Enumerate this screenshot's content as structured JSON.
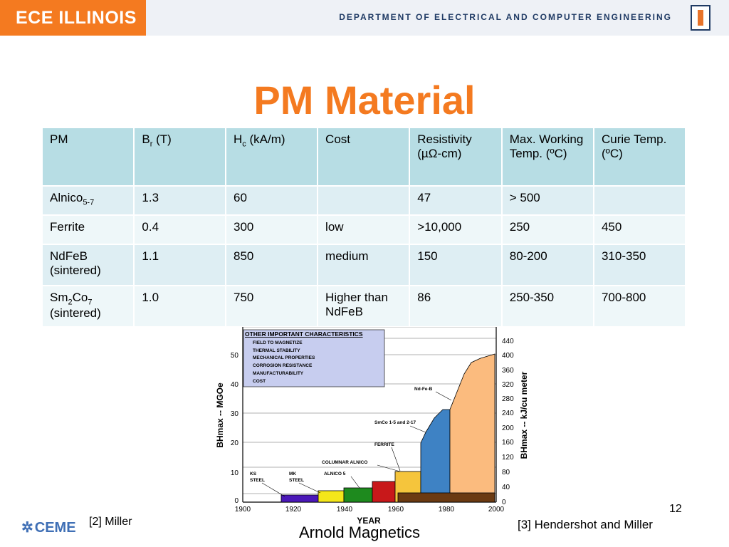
{
  "header": {
    "brand": "ECE ILLINOIS",
    "department": "DEPARTMENT OF ELECTRICAL AND COMPUTER ENGINEERING",
    "logo_letter": "I"
  },
  "title": "PM Material",
  "table": {
    "headers": [
      {
        "main": "PM",
        "sub": "",
        "tail": ""
      },
      {
        "main": "B",
        "sub": "r",
        "tail": " (T)"
      },
      {
        "main": "H",
        "sub": "c",
        "tail": " (kA/m)"
      },
      {
        "main": "Cost",
        "sub": "",
        "tail": ""
      },
      {
        "main": "Resistivity (µΩ-cm)",
        "sub": "",
        "tail": ""
      },
      {
        "main": "Max. Working Temp. (ºC)",
        "sub": "",
        "tail": ""
      },
      {
        "main": "Curie Temp. (ºC)",
        "sub": "",
        "tail": ""
      }
    ],
    "rows": [
      {
        "pm_main": "Alnico",
        "pm_sub": "5-7",
        "pm_mid": "",
        "pm_sub2": "",
        "pm_line2": "",
        "br": "1.3",
        "hc": "60",
        "cost": "",
        "resistivity": "47",
        "max_temp": "> 500",
        "curie": ""
      },
      {
        "pm_main": "Ferrite",
        "pm_sub": "",
        "pm_mid": "",
        "pm_sub2": "",
        "pm_line2": "",
        "br": "0.4",
        "hc": "300",
        "cost": "low",
        "resistivity": ">10,000",
        "max_temp": "250",
        "curie": "450"
      },
      {
        "pm_main": "NdFeB",
        "pm_sub": "",
        "pm_mid": "",
        "pm_sub2": "",
        "pm_line2": "(sintered)",
        "br": "1.1",
        "hc": "850",
        "cost": "medium",
        "resistivity": "150",
        "max_temp": "80-200",
        "curie": "310-350"
      },
      {
        "pm_main": "Sm",
        "pm_sub": "2",
        "pm_mid": "Co",
        "pm_sub2": "7",
        "pm_line2": "(sintered)",
        "br": "1.0",
        "hc": "750",
        "cost": "Higher than NdFeB",
        "resistivity": "86",
        "max_temp": "250-350",
        "curie": "700-800"
      }
    ]
  },
  "figure": {
    "y_left_ticks": [
      "0",
      "10",
      "20",
      "30",
      "40",
      "50"
    ],
    "y_right_ticks": [
      "0",
      "40",
      "80",
      "120",
      "160",
      "200",
      "240",
      "280",
      "320",
      "360",
      "400",
      "440"
    ],
    "x_ticks": [
      "1900",
      "1920",
      "1940",
      "1960",
      "1980",
      "2000"
    ],
    "y_left_label": "BHmax -- MGOe",
    "y_right_label": "BHmax -- kJ/cu meter",
    "x_label": "YEAR",
    "box_title": "OTHER IMPORTANT CHARACTERISTICS",
    "box_items": [
      "FIELD TO MAGNETIZE",
      "THERMAL STABILITY",
      "MECHANICAL PROPERTIES",
      "CORROSION RESISTANCE",
      "MANUFACTURABILITY",
      "COST"
    ],
    "labels": {
      "ndfeb": "Nd-Fe-B",
      "smco": "SmCo 1-5 and 2-17",
      "ferrite": "FERRITE",
      "columnar": "COLUMNAR ALNICO",
      "alnico5": "ALNICO 5",
      "ks1": "KS",
      "ks2": "STEEL",
      "mk1": "MK",
      "mk2": "STEEL"
    },
    "colors": {
      "ndfeb": "#fbbb7e",
      "smco": "#3e82c4",
      "ferrite": "#f5c53c",
      "columnar": "#c8181a",
      "alnico5": "#1e8a1e",
      "steel_yellow": "#f4e61a",
      "ks": "#4b18b8",
      "brown": "#6b3a12",
      "box": "#c7cdef"
    }
  },
  "footer": {
    "logo": "CEME",
    "ref_left": "[2] Miller",
    "ref_center": "Arnold Magnetics",
    "ref_right": "[3] Hendershot and Miller",
    "page": "12"
  }
}
